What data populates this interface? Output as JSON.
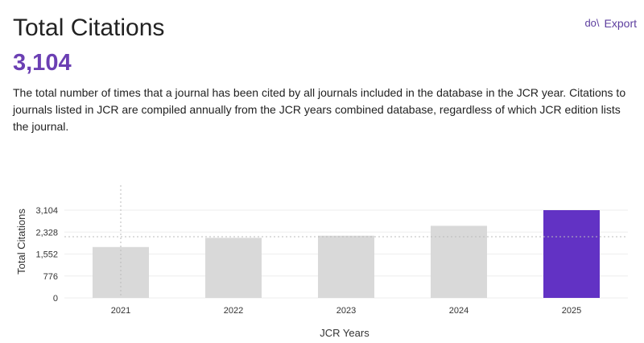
{
  "header": {
    "title": "Total Citations",
    "value": "3,104",
    "export_icon_text": "do\\",
    "export_label": "Export",
    "description": "The total number of times that a journal has been cited by all journals included in the database in the JCR year. Citations to journals listed in JCR are compiled annually from the JCR years combined database, regardless of which JCR edition lists the journal."
  },
  "colors": {
    "accent": "#6b3fb3",
    "bar_default": "#d9d9d9",
    "bar_highlight": "#6232c4"
  },
  "chart_data": {
    "type": "bar",
    "categories": [
      "2021",
      "2022",
      "2023",
      "2024",
      "2025"
    ],
    "values": [
      1800,
      2125,
      2200,
      2550,
      3104
    ],
    "highlight_index": 4,
    "reference_line": 2165,
    "xlabel": "JCR Years",
    "ylabel": "Total Citations",
    "yticks": [
      0,
      776,
      1552,
      2328,
      3104
    ],
    "ytick_labels": [
      "0",
      "776",
      "1,552",
      "2,328",
      "3,104"
    ],
    "ylim": [
      0,
      3104
    ],
    "grid": true
  }
}
